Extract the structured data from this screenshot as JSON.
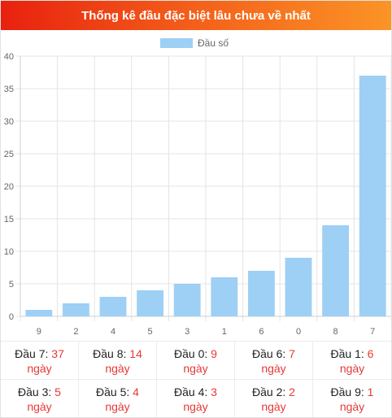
{
  "header": {
    "title": "Thống kê đầu đặc biệt lâu chưa về nhất"
  },
  "chart_data": {
    "type": "bar",
    "title": "",
    "legend": {
      "label": "Đầu số",
      "position": "top"
    },
    "categories": [
      "9",
      "2",
      "4",
      "5",
      "3",
      "1",
      "6",
      "0",
      "8",
      "7"
    ],
    "series": [
      {
        "name": "Đầu số",
        "values": [
          1,
          2,
          3,
          4,
          5,
          6,
          7,
          9,
          14,
          37
        ]
      }
    ],
    "ylim": [
      0,
      40
    ],
    "yticks": [
      0,
      5,
      10,
      15,
      20,
      25,
      30,
      35,
      40
    ],
    "grid": true,
    "bar_color": "#9ecff5"
  },
  "stats": [
    {
      "label": "Đầu 7:",
      "value": "37",
      "unit": "ngày"
    },
    {
      "label": "Đầu 8:",
      "value": "14",
      "unit": "ngày"
    },
    {
      "label": "Đầu 0:",
      "value": "9",
      "unit": "ngày"
    },
    {
      "label": "Đầu 6:",
      "value": "7",
      "unit": "ngày"
    },
    {
      "label": "Đầu 1:",
      "value": "6",
      "unit": "ngày"
    },
    {
      "label": "Đầu 3:",
      "value": "5",
      "unit": "ngày"
    },
    {
      "label": "Đầu 5:",
      "value": "4",
      "unit": "ngày"
    },
    {
      "label": "Đầu 4:",
      "value": "3",
      "unit": "ngày"
    },
    {
      "label": "Đầu 2:",
      "value": "2",
      "unit": "ngày"
    },
    {
      "label": "Đầu 9:",
      "value": "1",
      "unit": "ngày"
    }
  ]
}
